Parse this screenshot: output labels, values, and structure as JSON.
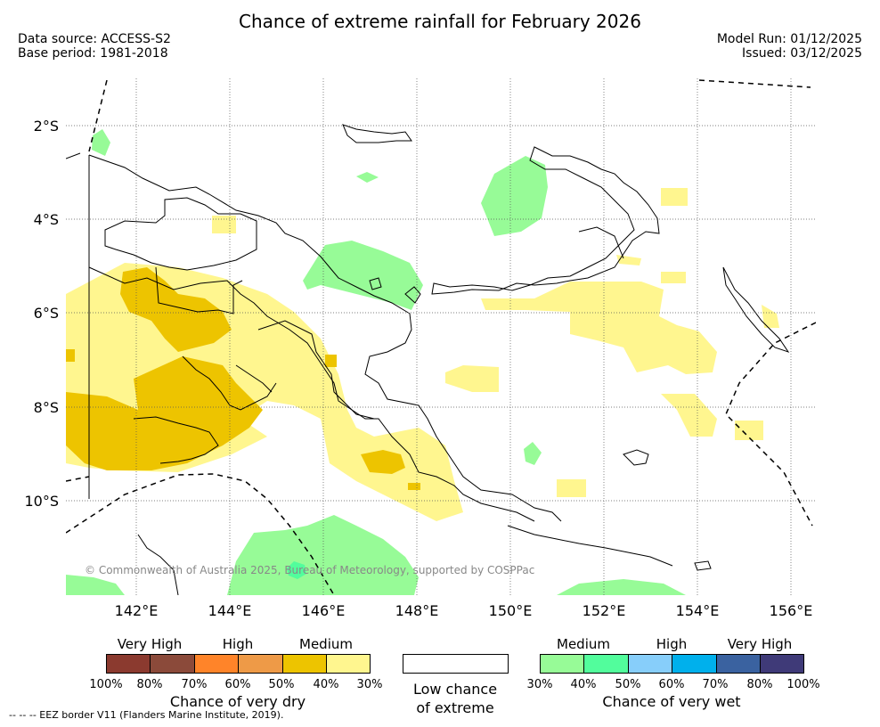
{
  "title": "Chance of extreme rainfall for February 2026",
  "meta": {
    "data_source": "Data source: ACCESS-S2",
    "base_period": "Base period: 1981-2018",
    "model_run": "Model Run: 01/12/2025",
    "issued": "Issued: 03/12/2025"
  },
  "map": {
    "lat_labels": [
      "2°S",
      "4°S",
      "6°S",
      "8°S",
      "10°S"
    ],
    "lon_labels": [
      "142°E",
      "144°E",
      "146°E",
      "148°E",
      "150°E",
      "152°E",
      "154°E",
      "156°E"
    ],
    "copyright": "© Commonwealth of Australia 2025, Bureau of Meteorology, supported by COSPPac",
    "eez_note": "--  --  -- EEZ border V11 (Flanders Marine Institute, 2019).",
    "ocean_color": "#ffffff",
    "coast_color": "#000000"
  },
  "legend": {
    "dry": {
      "categories": [
        "Very High",
        "High",
        "Medium"
      ],
      "colors": [
        "#8b3a2f",
        "#8b4a3a",
        "#ff8429",
        "#ee9a47",
        "#edc400",
        "#fff68f"
      ],
      "ticks": [
        "100%",
        "80%",
        "70%",
        "60%",
        "50%",
        "40%",
        "30%"
      ],
      "caption": "Chance of very dry"
    },
    "low": {
      "caption_line1": "Low chance",
      "caption_line2": "of extreme"
    },
    "wet": {
      "categories": [
        "Medium",
        "High",
        "Very High"
      ],
      "colors": [
        "#97fb97",
        "#52fd9c",
        "#87cefa",
        "#00b0ec",
        "#3a62a0",
        "#3f3a78"
      ],
      "ticks": [
        "30%",
        "40%",
        "50%",
        "60%",
        "70%",
        "80%",
        "100%"
      ],
      "caption": "Chance of very wet"
    }
  }
}
